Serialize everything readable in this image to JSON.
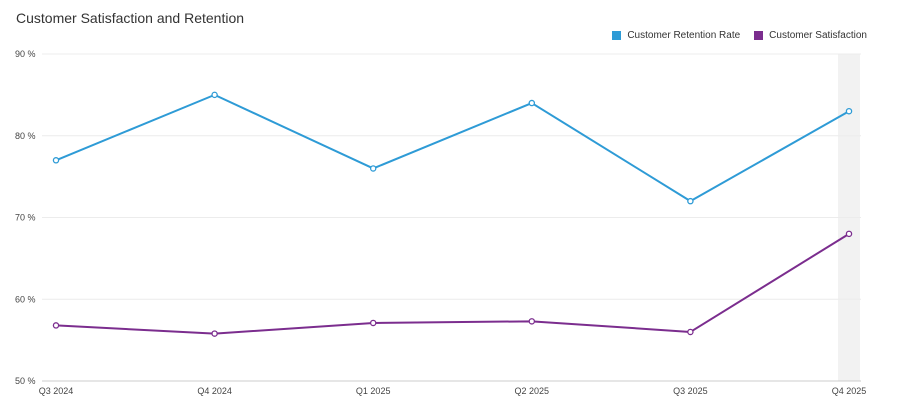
{
  "chart_data": {
    "type": "line",
    "title": "Customer Satisfaction and Retention",
    "categories": [
      "Q3 2024",
      "Q4 2024",
      "Q1 2025",
      "Q2 2025",
      "Q3 2025",
      "Q4 2025"
    ],
    "y_ticks": [
      "50 %",
      "60 %",
      "70 %",
      "80 %",
      "90 %"
    ],
    "ylim": [
      50,
      90
    ],
    "grid": true,
    "legend_position": "top-right",
    "highlighted_category": "Q4 2025",
    "series": [
      {
        "name": "Customer Retention Rate",
        "color": "#2E9BD6",
        "values": [
          77,
          85,
          76,
          84,
          72,
          83
        ]
      },
      {
        "name": "Customer Satisfaction",
        "color": "#7B2D8E",
        "values": [
          56.8,
          55.8,
          57.1,
          57.3,
          56.0,
          68.0
        ]
      }
    ]
  }
}
